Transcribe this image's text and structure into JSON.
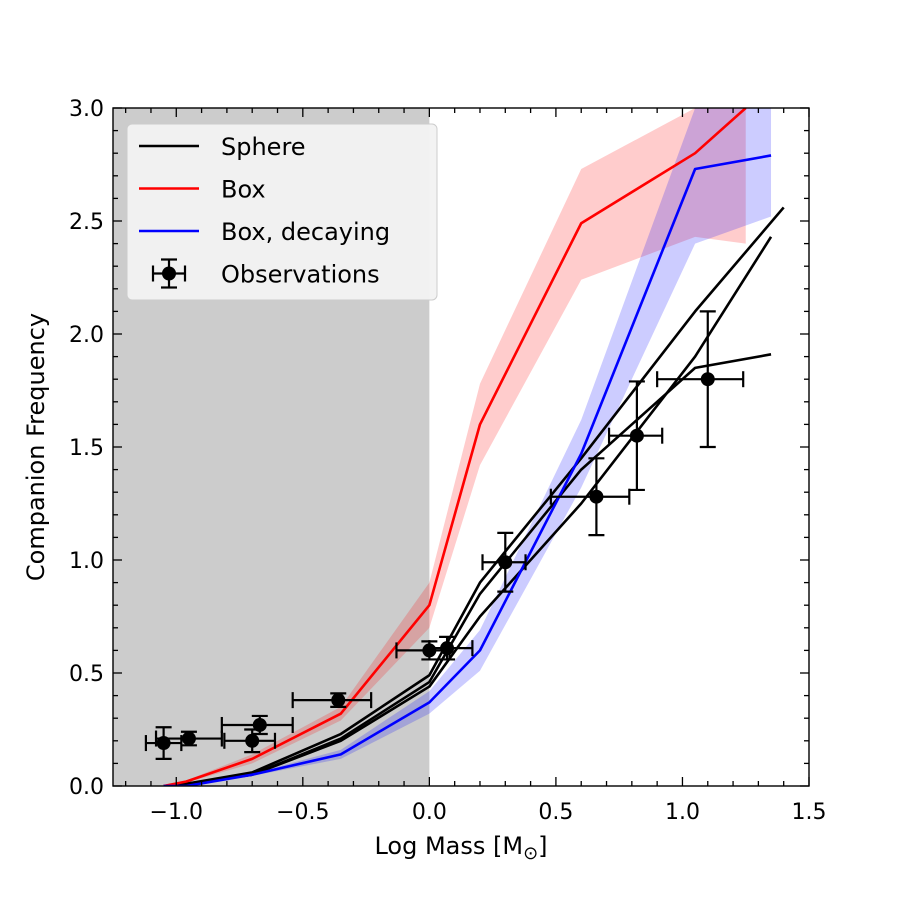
{
  "chart_data": {
    "type": "line",
    "title": "",
    "xlabel": "Log Mass [M",
    "xlabel_sub": "⊙",
    "xlabel_close": "]",
    "ylabel": "Companion Frequency",
    "xlim": [
      -1.25,
      1.5
    ],
    "ylim": [
      0.0,
      3.0
    ],
    "xticks": [
      -1.0,
      -0.5,
      0.0,
      0.5,
      1.0,
      1.5
    ],
    "xtick_labels": [
      "−1.0",
      "−0.5",
      "0.0",
      "0.5",
      "1.0",
      "1.5"
    ],
    "yticks": [
      0.0,
      0.5,
      1.0,
      1.5,
      2.0,
      2.5,
      3.0
    ],
    "ytick_labels": [
      "0.0",
      "0.5",
      "1.0",
      "1.5",
      "2.0",
      "2.5",
      "3.0"
    ],
    "shaded_region": {
      "x0": -1.25,
      "x1": 0.0,
      "color": "#cccccc"
    },
    "legend_position": "top-left",
    "series": [
      {
        "name": "Sphere",
        "color": "#000000",
        "legend": true,
        "x": [
          -1.05,
          -0.96,
          -0.7,
          -0.35,
          0.0,
          0.2,
          0.6,
          1.05,
          1.4
        ],
        "y": [
          0.0,
          0.01,
          0.06,
          0.23,
          0.49,
          0.9,
          1.45,
          2.1,
          2.56
        ]
      },
      {
        "name": "Sphere",
        "color": "#000000",
        "legend": false,
        "x": [
          -1.05,
          -0.96,
          -0.7,
          -0.35,
          0.0,
          0.2,
          0.6,
          1.05,
          1.35
        ],
        "y": [
          0.0,
          0.01,
          0.05,
          0.21,
          0.46,
          0.85,
          1.4,
          1.85,
          1.91
        ]
      },
      {
        "name": "Sphere",
        "color": "#000000",
        "legend": false,
        "x": [
          -1.05,
          -0.96,
          -0.7,
          -0.35,
          0.0,
          0.2,
          0.6,
          1.05,
          1.35
        ],
        "y": [
          0.0,
          0.01,
          0.05,
          0.2,
          0.44,
          0.75,
          1.25,
          1.9,
          2.43
        ]
      },
      {
        "name": "Box",
        "color": "#ff0000",
        "legend": true,
        "band_color": "#ff0000",
        "x": [
          -1.05,
          -0.96,
          -0.7,
          -0.35,
          0.0,
          0.2,
          0.6,
          1.05,
          1.25
        ],
        "y": [
          0.0,
          0.02,
          0.12,
          0.32,
          0.8,
          1.6,
          2.49,
          2.8,
          3.0
        ],
        "y_low": [
          0.0,
          0.015,
          0.1,
          0.29,
          0.7,
          1.42,
          2.24,
          2.43,
          2.4
        ],
        "y_high": [
          0.0,
          0.025,
          0.14,
          0.35,
          0.9,
          1.78,
          2.73,
          3.0,
          3.0
        ]
      },
      {
        "name": "Box, decaying",
        "color": "#0000ff",
        "legend": true,
        "band_color": "#0000ff",
        "x": [
          -1.05,
          -0.96,
          -0.7,
          -0.35,
          0.0,
          0.2,
          0.6,
          1.05,
          1.35
        ],
        "y": [
          0.0,
          0.0,
          0.05,
          0.14,
          0.37,
          0.6,
          1.47,
          2.73,
          2.79
        ],
        "y_low": [
          0.0,
          0.0,
          0.045,
          0.12,
          0.32,
          0.51,
          1.32,
          2.4,
          2.52
        ],
        "y_high": [
          0.0,
          0.0,
          0.055,
          0.16,
          0.42,
          0.69,
          1.62,
          3.0,
          3.0
        ]
      }
    ],
    "observations": {
      "name": "Observations",
      "color": "#000000",
      "x": [
        -1.05,
        -0.95,
        -0.7,
        -0.67,
        -0.36,
        0.0,
        0.07,
        0.3,
        0.66,
        0.82,
        1.1
      ],
      "y": [
        0.19,
        0.21,
        0.2,
        0.27,
        0.38,
        0.6,
        0.61,
        0.99,
        1.28,
        1.55,
        1.8
      ],
      "xerr_low": [
        0.07,
        0.13,
        0.11,
        0.15,
        0.18,
        0.13,
        0.07,
        0.09,
        0.18,
        0.11,
        0.2
      ],
      "xerr_high": [
        0.07,
        0.13,
        0.09,
        0.13,
        0.13,
        0.08,
        0.1,
        0.08,
        0.13,
        0.1,
        0.14
      ],
      "yerr": [
        0.07,
        0.03,
        0.05,
        0.04,
        0.03,
        0.04,
        0.05,
        0.13,
        0.17,
        0.24,
        0.3
      ]
    }
  }
}
